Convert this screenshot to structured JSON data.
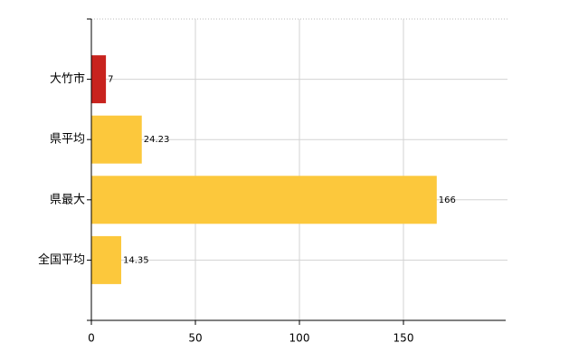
{
  "chart_data": {
    "type": "barh",
    "categories": [
      "大竹市",
      "県平均",
      "県最大",
      "全国平均"
    ],
    "values": [
      7,
      24.23,
      166,
      14.35
    ],
    "colors": [
      "#c8231e",
      "#fcc83c",
      "#fcc83c",
      "#fcc83c"
    ],
    "xlim": [
      0,
      200
    ],
    "xticks": [
      0,
      50,
      100,
      150
    ],
    "grid": true
  }
}
